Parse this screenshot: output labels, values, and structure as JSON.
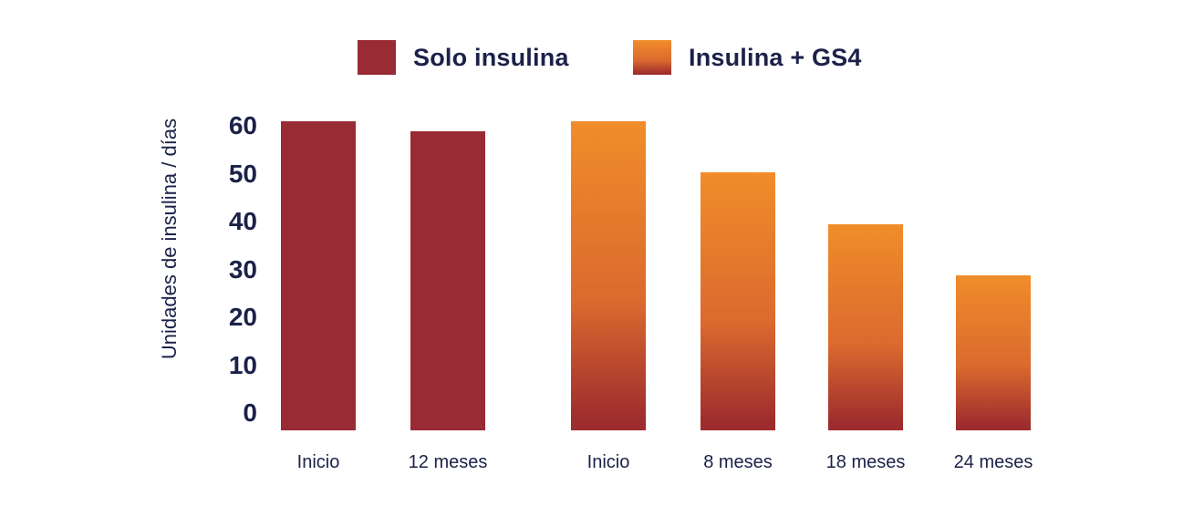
{
  "chart_data": {
    "type": "bar",
    "title": "",
    "xlabel": "",
    "ylabel": "Unidades de insulina / días",
    "ylim": [
      0,
      60
    ],
    "yticks": [
      60,
      50,
      40,
      30,
      20,
      10,
      0
    ],
    "grid": false,
    "legend_position": "top",
    "series": [
      {
        "name": "Solo insulina",
        "categories": [
          "Inicio",
          "12 meses"
        ],
        "values": [
          60,
          58
        ]
      },
      {
        "name": "Insulina + GS4",
        "categories": [
          "Inicio",
          "8 meses",
          "18 meses",
          "24 meses"
        ],
        "values": [
          60,
          50,
          40,
          30
        ]
      }
    ]
  },
  "colors": {
    "background": "#ffffff",
    "text_navy": "#1b2148",
    "solo_insulina_red": "#982b33",
    "gs4_gradient_top": "#f08d2a",
    "gs4_gradient_mid": "#db6a2e",
    "gs4_gradient_bottom": "#9d2c2e"
  }
}
